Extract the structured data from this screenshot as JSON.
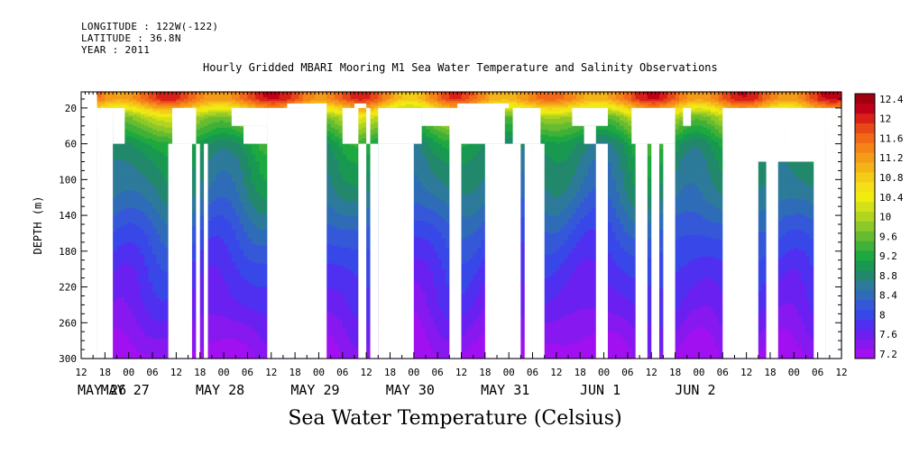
{
  "header": {
    "longitude": "LONGITUDE : 122W(-122)",
    "latitude": "LATITUDE : 36.8N",
    "year": "YEAR : 2011"
  },
  "chart_data": {
    "type": "heatmap",
    "title": "Hourly Gridded MBARI Mooring M1 Sea Water Temperature and Salinity Observations",
    "xlabel": "Sea Water Temperature (Celsius)",
    "ylabel": "DEPTH (m)",
    "y_ticks": [
      20,
      60,
      100,
      140,
      180,
      220,
      260,
      300
    ],
    "ylim": [
      300,
      2
    ],
    "x_hour_ticks": [
      "12",
      "18",
      "00",
      "06",
      "12",
      "18",
      "00",
      "06",
      "12",
      "18",
      "00",
      "06",
      "12",
      "18",
      "00",
      "06",
      "12",
      "18",
      "00",
      "06",
      "12",
      "18",
      "00",
      "06",
      "12",
      "18",
      "00",
      "06",
      "12",
      "18",
      "00",
      "06",
      "12"
    ],
    "x_day_labels": [
      {
        "label": "MAY 26",
        "hour": 12
      },
      {
        "label": "MAY 27",
        "hour": 0
      },
      {
        "label": "MAY 28",
        "hour": 0
      },
      {
        "label": "MAY 29",
        "hour": 0
      },
      {
        "label": "MAY 30",
        "hour": 0
      },
      {
        "label": "MAY 31",
        "hour": 0
      },
      {
        "label": "JUN  1",
        "hour": 0
      },
      {
        "label": "JUN  2",
        "hour": 0
      }
    ],
    "colorbar_labels": [
      "12.4",
      "12",
      "11.6",
      "11.2",
      "10.8",
      "10.4",
      "10",
      "9.6",
      "9.2",
      "8.8",
      "8.4",
      "8",
      "7.6",
      "7.2"
    ],
    "levels": [
      7.2,
      7.4,
      7.6,
      7.8,
      8.0,
      8.2,
      8.4,
      8.6,
      8.8,
      9.0,
      9.2,
      9.4,
      9.6,
      9.8,
      10.0,
      10.2,
      10.4,
      10.6,
      10.8,
      11.0,
      11.2,
      11.4,
      11.6,
      11.8,
      12.0,
      12.2,
      12.4,
      12.6
    ],
    "colors": [
      "#a010f0",
      "#8818f0",
      "#6a20f0",
      "#5030f0",
      "#3848e8",
      "#3458d8",
      "#2f6cb8",
      "#2d7a9a",
      "#22886c",
      "#189850",
      "#1ea840",
      "#40b038",
      "#66bc30",
      "#8cc828",
      "#b0d420",
      "#d4e018",
      "#f0ec10",
      "#f4e018",
      "#f4cc18",
      "#f4b418",
      "#f49c18",
      "#f48418",
      "#f06818",
      "#e84818",
      "#d82018",
      "#c00018",
      "#a00010"
    ],
    "profile": {
      "depths": [
        10,
        20,
        30,
        40,
        50,
        60,
        70,
        80,
        100,
        120,
        140,
        160,
        180,
        200,
        220,
        240,
        260,
        280,
        300
      ],
      "temps": [
        11.6,
        10.8,
        10.0,
        9.7,
        9.4,
        9.1,
        9.0,
        8.9,
        8.8,
        8.65,
        8.45,
        8.25,
        8.1,
        7.95,
        7.85,
        7.75,
        7.6,
        7.45,
        7.3
      ]
    }
  }
}
